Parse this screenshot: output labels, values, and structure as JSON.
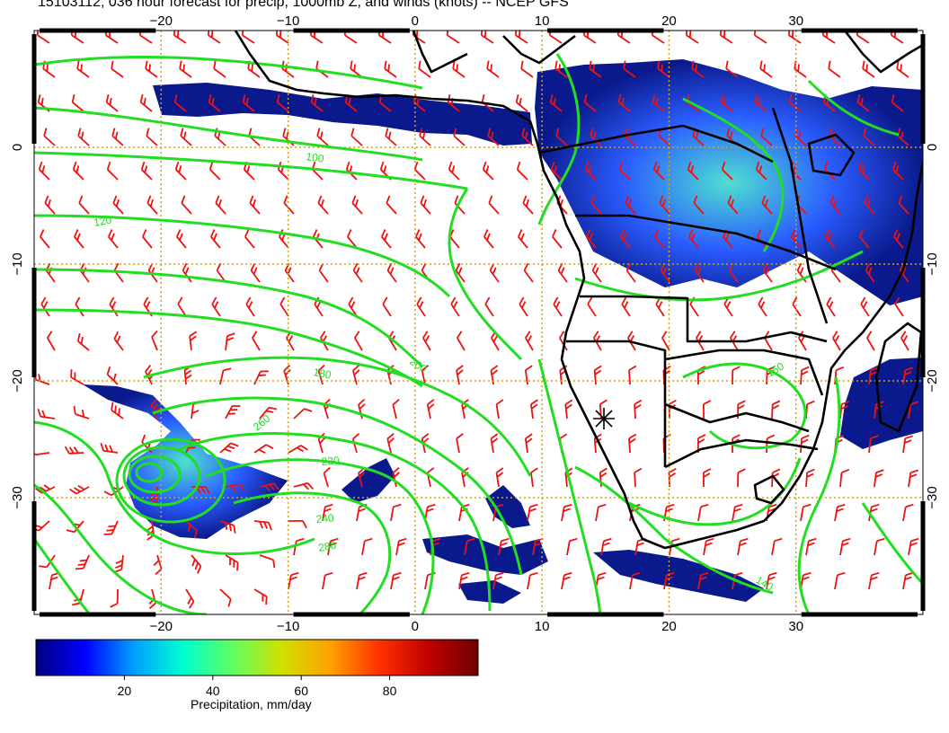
{
  "title": "15103112, 036 hour forecast for precip, 1000mb Z, and winds (knots) -- NCEP GFS",
  "map": {
    "lon_range": [
      -30,
      40
    ],
    "lat_range": [
      -40,
      10
    ],
    "lon_ticks": [
      -20,
      -10,
      0,
      10,
      20,
      30
    ],
    "lat_ticks": [
      0,
      -10,
      -20,
      -30
    ],
    "lon_tick_labels": [
      "−20",
      "−10",
      "0",
      "10",
      "20",
      "30"
    ],
    "lat_tick_labels": [
      "0",
      "−10",
      "−20",
      "−30"
    ],
    "grid": true,
    "colors": {
      "contour": "#22dd22",
      "barb": "#ee1111",
      "coast": "#000000",
      "grid": "#d9a000",
      "precip_low": "#0a1a8c",
      "precip_mid": "#2a5cff",
      "precip_high": "#4fe0d0"
    },
    "contour_labels": [
      "100",
      "120",
      "140",
      "160",
      "180",
      "200",
      "220",
      "240",
      "260",
      "280"
    ],
    "marker": "cyclone-star-icon"
  },
  "colorbar": {
    "label": "Precipitation, mm/day",
    "ticks": [
      "20",
      "40",
      "60",
      "80"
    ],
    "tick_values": [
      20,
      40,
      60,
      80
    ],
    "range": [
      0,
      100
    ],
    "colors": [
      "#00007f",
      "#0000ff",
      "#00a0ff",
      "#00ffd0",
      "#60ff60",
      "#d0e000",
      "#ffa000",
      "#ff3000",
      "#c00000",
      "#700000"
    ]
  }
}
